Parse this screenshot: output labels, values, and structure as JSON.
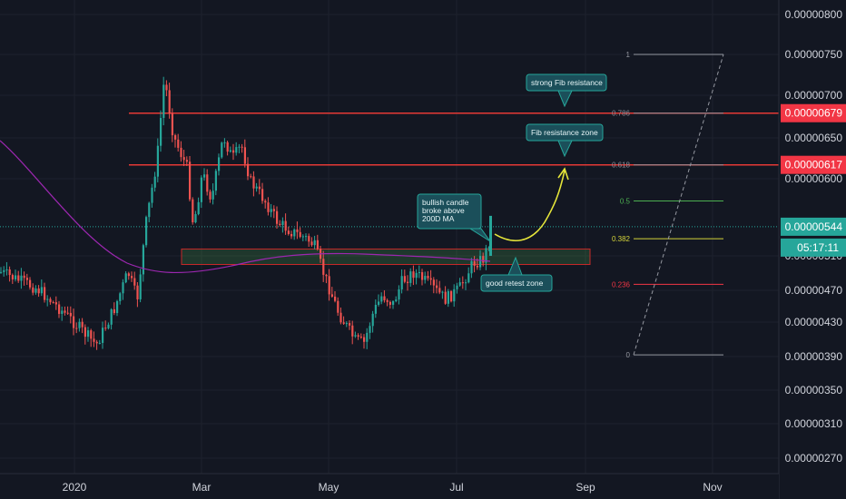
{
  "chart_data": {
    "type": "candlestick",
    "x_ticks": [
      "2020",
      "Mar",
      "May",
      "Jul",
      "Sep",
      "Nov"
    ],
    "y_ticks": [
      "0.00000800",
      "0.00000750",
      "0.00000700",
      "0.00000650",
      "0.00000600",
      "0.00000510",
      "0.00000470",
      "0.00000430",
      "0.00000390",
      "0.00000350",
      "0.00000310",
      "0.00000270"
    ],
    "ylim": [
      2.5e-06,
      8.2e-06
    ],
    "price_labels": [
      {
        "text": "0.00000679",
        "color": "#f23645"
      },
      {
        "text": "0.00000617",
        "color": "#f23645"
      },
      {
        "text": "0.00000544",
        "color": "#26a69a"
      },
      {
        "text": "05:17:11",
        "color": "#26a69a"
      }
    ],
    "resistance_levels": [
      6.79e-06,
      6.17e-06
    ],
    "current_price": 5.44e-06,
    "support_zone": [
      5e-06,
      5.18e-06
    ],
    "fib_levels": [
      {
        "label": "1",
        "value": 7.5e-06,
        "color": "#9598a1"
      },
      {
        "label": "0.786",
        "value": 6.79e-06,
        "color": "#8a8f99"
      },
      {
        "label": "0.618",
        "value": 6.17e-06,
        "color": "#8a8f99"
      },
      {
        "label": "0.5",
        "value": 5.74e-06,
        "color": "#4caf50"
      },
      {
        "label": "0.382",
        "value": 5.3e-06,
        "color": "#d4d43a"
      },
      {
        "label": "0.236",
        "value": 4.77e-06,
        "color": "#f23645"
      },
      {
        "label": "0",
        "value": 3.92e-06,
        "color": "#9598a1"
      }
    ],
    "annotations": [
      {
        "lines": [
          "strong Fib resistance"
        ]
      },
      {
        "lines": [
          "Fib resistance zone"
        ]
      },
      {
        "lines": [
          "bullish candle",
          "broke above",
          "200D MA"
        ]
      },
      {
        "lines": [
          "good retest zone"
        ]
      }
    ],
    "ma_series_color": "#9c27b0",
    "colors": {
      "up": "#26a69a",
      "down": "#ef5350",
      "background": "#131722",
      "projection": "#e6e63a"
    }
  }
}
